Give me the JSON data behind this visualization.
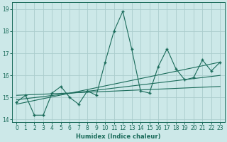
{
  "title": "",
  "xlabel": "Humidex (Indice chaleur)",
  "ylabel": "",
  "bg_color": "#cce8e8",
  "grid_color": "#aacccc",
  "line_color": "#1a6b5a",
  "x_values": [
    0,
    1,
    2,
    3,
    4,
    5,
    6,
    7,
    8,
    9,
    10,
    11,
    12,
    13,
    14,
    15,
    16,
    17,
    18,
    19,
    20,
    21,
    22,
    23
  ],
  "main_y": [
    14.8,
    15.1,
    14.2,
    14.2,
    15.2,
    15.5,
    15.0,
    14.7,
    15.3,
    15.1,
    16.6,
    18.0,
    18.9,
    17.2,
    15.3,
    15.2,
    16.4,
    17.2,
    16.3,
    15.8,
    15.9,
    16.7,
    16.2,
    16.6
  ],
  "trend1_x": [
    0,
    23
  ],
  "trend1_y": [
    14.7,
    16.6
  ],
  "trend2_x": [
    0,
    23
  ],
  "trend2_y": [
    14.9,
    16.0
  ],
  "trend3_x": [
    0,
    23
  ],
  "trend3_y": [
    15.1,
    15.5
  ],
  "ylim": [
    13.9,
    19.3
  ],
  "yticks": [
    14,
    15,
    16,
    17,
    18,
    19
  ],
  "xticks": [
    0,
    1,
    2,
    3,
    4,
    5,
    6,
    7,
    8,
    9,
    10,
    11,
    12,
    13,
    14,
    15,
    16,
    17,
    18,
    19,
    20,
    21,
    22,
    23
  ]
}
